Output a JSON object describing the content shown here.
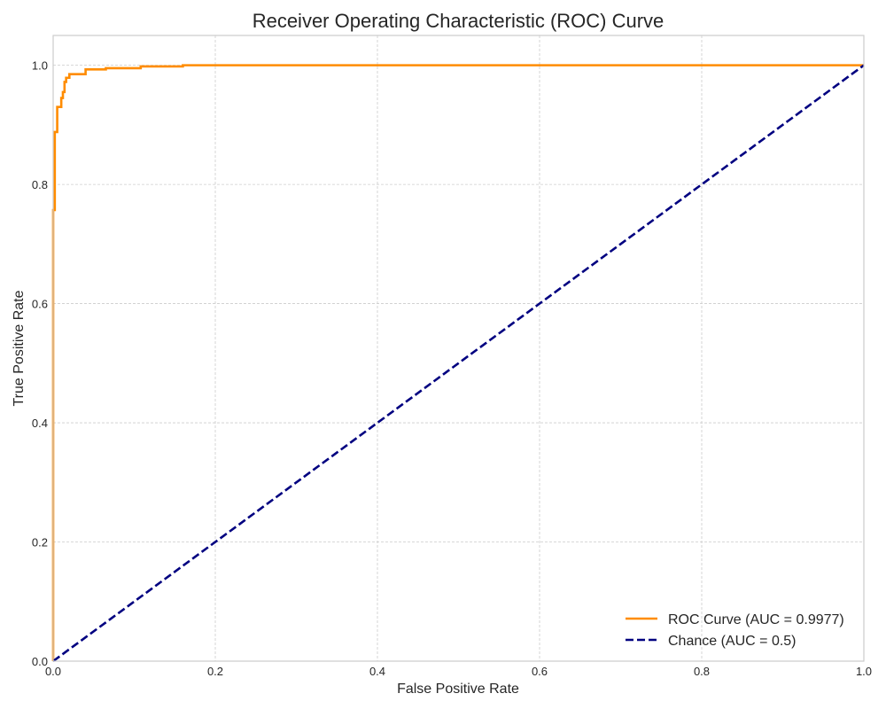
{
  "chart_data": {
    "type": "line",
    "title": "Receiver Operating Characteristic (ROC) Curve",
    "xlabel": "False Positive Rate",
    "ylabel": "True Positive Rate",
    "xlim": [
      0.0,
      1.0
    ],
    "ylim": [
      0.0,
      1.05
    ],
    "xticks": [
      0.0,
      0.2,
      0.4,
      0.6,
      0.8,
      1.0
    ],
    "yticks": [
      0.0,
      0.2,
      0.4,
      0.6,
      0.8,
      1.0
    ],
    "xtick_labels": [
      "0.0",
      "0.2",
      "0.4",
      "0.6",
      "0.8",
      "1.0"
    ],
    "ytick_labels": [
      "0.0",
      "0.2",
      "0.4",
      "0.6",
      "0.8",
      "1.0"
    ],
    "grid": true,
    "legend_position": "bottom-right",
    "series": [
      {
        "name": "ROC Curve (AUC = 0.9977)",
        "color": "#ff8c00",
        "style": "solid",
        "points": [
          [
            0.0,
            0.0
          ],
          [
            0.0,
            0.003
          ],
          [
            0.0,
            0.757
          ],
          [
            0.002,
            0.757
          ],
          [
            0.002,
            0.888
          ],
          [
            0.005,
            0.888
          ],
          [
            0.005,
            0.93
          ],
          [
            0.01,
            0.93
          ],
          [
            0.01,
            0.945
          ],
          [
            0.012,
            0.945
          ],
          [
            0.012,
            0.955
          ],
          [
            0.014,
            0.955
          ],
          [
            0.014,
            0.972
          ],
          [
            0.016,
            0.972
          ],
          [
            0.016,
            0.979
          ],
          [
            0.02,
            0.979
          ],
          [
            0.02,
            0.985
          ],
          [
            0.04,
            0.985
          ],
          [
            0.04,
            0.993
          ],
          [
            0.065,
            0.993
          ],
          [
            0.065,
            0.995
          ],
          [
            0.108,
            0.995
          ],
          [
            0.108,
            0.998
          ],
          [
            0.16,
            0.998
          ],
          [
            0.16,
            1.0
          ],
          [
            1.0,
            1.0
          ]
        ]
      },
      {
        "name": "Chance (AUC = 0.5)",
        "color": "#000080",
        "style": "dashed",
        "points": [
          [
            0.0,
            0.0
          ],
          [
            1.0,
            1.0
          ]
        ]
      }
    ]
  }
}
